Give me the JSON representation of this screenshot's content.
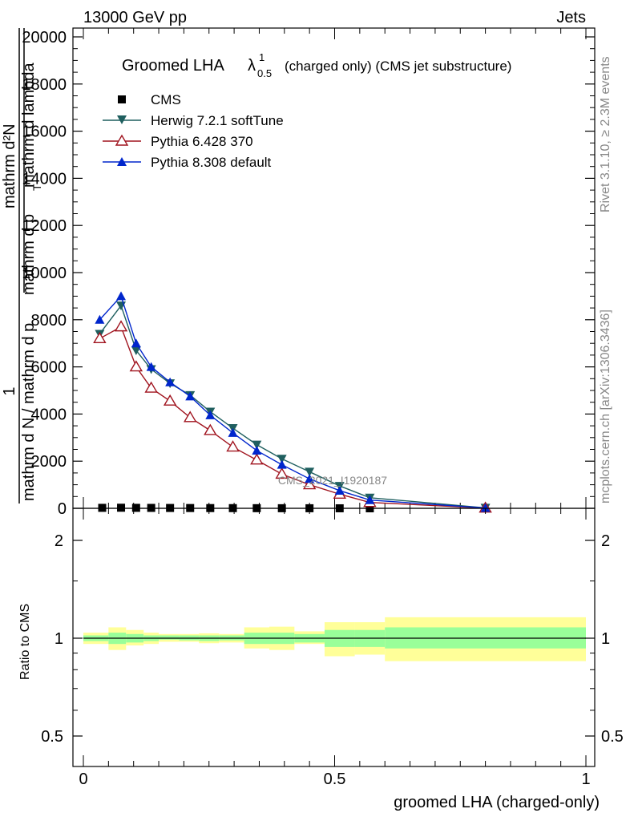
{
  "header": {
    "energy": "13000 GeV pp",
    "process": "Jets"
  },
  "chart_data": [
    {
      "type": "line",
      "title": "Groomed LHA",
      "title_symbol": "λ",
      "title_sup": "1",
      "title_sub": "0.5",
      "title_suffix": "(charged only) (CMS jet substructure)",
      "ylabel": {
        "numerator_outer": "1",
        "denominator_outer": "mathrm d N / mathrm d p",
        "numerator_inner": "mathrm d²N",
        "denominator_inner": "mathrm d p",
        "denominator_inner_tail": "mathrm d lambda",
        "subscript": "T"
      },
      "side_label_top": "Rivet 3.1.10, ≥ 2.3M events",
      "side_label_bottom": "mcplots.cern.ch [arXiv:1306.3436]",
      "watermark": "CMS_2021_I1920187",
      "xlim": [
        0,
        1
      ],
      "ylim": [
        0,
        20000
      ],
      "y_ticks": [
        "0",
        "2000",
        "4000",
        "6000",
        "8000",
        "10000",
        "12000",
        "14000",
        "16000",
        "18000",
        "20000"
      ],
      "legend_position": "top-left",
      "series": [
        {
          "name": "CMS",
          "marker": "square",
          "color": "#000000",
          "x": [
            0.0375,
            0.075,
            0.105,
            0.135,
            0.1725,
            0.2125,
            0.2525,
            0.2975,
            0.345,
            0.395,
            0.45,
            0.51,
            0.57
          ],
          "y": [
            20,
            25,
            20,
            18,
            15,
            12,
            10,
            8,
            6,
            4,
            3,
            1,
            0
          ]
        },
        {
          "name": "Herwig 7.2.1 softTune",
          "marker": "triangle-down",
          "color": "#1f5f5f",
          "x": [
            0.0325,
            0.075,
            0.105,
            0.135,
            0.1725,
            0.2125,
            0.2525,
            0.2975,
            0.345,
            0.395,
            0.45,
            0.51,
            0.57,
            0.8
          ],
          "y": [
            7400,
            8600,
            6700,
            5900,
            5300,
            4800,
            4100,
            3400,
            2700,
            2100,
            1550,
            950,
            450,
            20
          ]
        },
        {
          "name": "Pythia 6.428 370",
          "marker": "triangle-up-open",
          "color": "#a0131e",
          "x": [
            0.0325,
            0.075,
            0.105,
            0.135,
            0.1725,
            0.2125,
            0.2525,
            0.2975,
            0.345,
            0.395,
            0.45,
            0.51,
            0.57,
            0.8
          ],
          "y": [
            7200,
            7700,
            6000,
            5100,
            4550,
            3850,
            3300,
            2600,
            2050,
            1450,
            1000,
            600,
            250,
            10
          ]
        },
        {
          "name": "Pythia 8.308 default",
          "marker": "triangle-up",
          "color": "#0026cc",
          "x": [
            0.0325,
            0.075,
            0.105,
            0.135,
            0.1725,
            0.2125,
            0.2525,
            0.2975,
            0.345,
            0.395,
            0.45,
            0.51,
            0.57,
            0.8
          ],
          "y": [
            8000,
            9000,
            7000,
            6000,
            5350,
            4750,
            3950,
            3200,
            2450,
            1850,
            1250,
            750,
            350,
            15
          ]
        }
      ]
    },
    {
      "type": "area",
      "ylabel": "Ratio to CMS",
      "xlabel": "groomed LHA (charged-only)",
      "ylim": [
        0.4,
        2.4
      ],
      "y_scale": "log",
      "y_ticks": [
        "0.5",
        "1",
        "2"
      ],
      "x_ticks": [
        "0",
        "0.5",
        "1"
      ],
      "xlim": [
        0,
        1
      ],
      "bins": [
        {
          "lo": 0.0,
          "hi": 0.05,
          "in_lo": 0.98,
          "in_hi": 1.02,
          "out_lo": 0.96,
          "out_hi": 1.04
        },
        {
          "lo": 0.05,
          "hi": 0.085,
          "in_lo": 0.96,
          "in_hi": 1.04,
          "out_lo": 0.92,
          "out_hi": 1.08
        },
        {
          "lo": 0.085,
          "hi": 0.12,
          "in_lo": 0.97,
          "in_hi": 1.03,
          "out_lo": 0.95,
          "out_hi": 1.06
        },
        {
          "lo": 0.12,
          "hi": 0.15,
          "in_lo": 0.98,
          "in_hi": 1.02,
          "out_lo": 0.96,
          "out_hi": 1.04
        },
        {
          "lo": 0.15,
          "hi": 0.19,
          "in_lo": 0.99,
          "in_hi": 1.02,
          "out_lo": 0.975,
          "out_hi": 1.03
        },
        {
          "lo": 0.19,
          "hi": 0.23,
          "in_lo": 0.985,
          "in_hi": 1.02,
          "out_lo": 0.975,
          "out_hi": 1.03
        },
        {
          "lo": 0.23,
          "hi": 0.27,
          "in_lo": 0.98,
          "in_hi": 1.02,
          "out_lo": 0.965,
          "out_hi": 1.035
        },
        {
          "lo": 0.27,
          "hi": 0.32,
          "in_lo": 0.985,
          "in_hi": 1.02,
          "out_lo": 0.97,
          "out_hi": 1.03
        },
        {
          "lo": 0.32,
          "hi": 0.37,
          "in_lo": 0.96,
          "in_hi": 1.04,
          "out_lo": 0.93,
          "out_hi": 1.08
        },
        {
          "lo": 0.37,
          "hi": 0.42,
          "in_lo": 0.96,
          "in_hi": 1.04,
          "out_lo": 0.92,
          "out_hi": 1.085
        },
        {
          "lo": 0.42,
          "hi": 0.48,
          "in_lo": 0.97,
          "in_hi": 1.03,
          "out_lo": 0.96,
          "out_hi": 1.05
        },
        {
          "lo": 0.48,
          "hi": 0.54,
          "in_lo": 0.94,
          "in_hi": 1.06,
          "out_lo": 0.88,
          "out_hi": 1.12
        },
        {
          "lo": 0.54,
          "hi": 0.6,
          "in_lo": 0.94,
          "in_hi": 1.06,
          "out_lo": 0.89,
          "out_hi": 1.12
        },
        {
          "lo": 0.6,
          "hi": 1.0,
          "in_lo": 0.93,
          "in_hi": 1.08,
          "out_lo": 0.85,
          "out_hi": 1.16
        }
      ],
      "band_colors": {
        "inner": "#99ff99",
        "outer": "#ffff99"
      }
    }
  ]
}
